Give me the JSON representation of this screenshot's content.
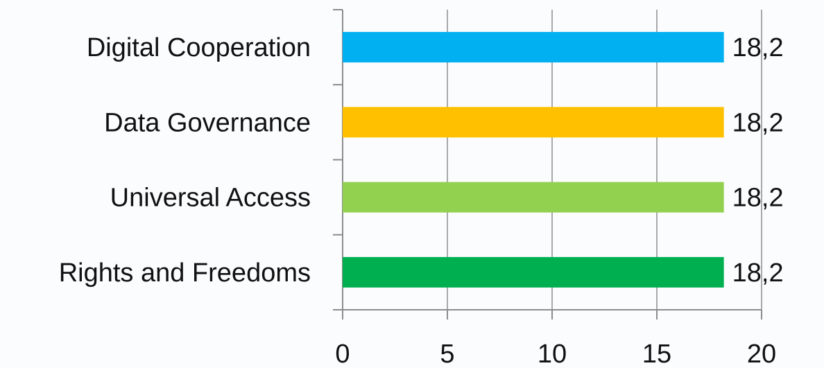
{
  "chart_data": {
    "type": "bar",
    "orientation": "horizontal",
    "categories": [
      "Digital Cooperation",
      "Data Governance",
      "Universal Access",
      "Rights and Freedoms"
    ],
    "values": [
      18.2,
      18.2,
      18.2,
      18.2
    ],
    "value_labels": [
      "18,2",
      "18,2",
      "18,2",
      "18,2"
    ],
    "colors": [
      "#00b0f0",
      "#ffc000",
      "#92d050",
      "#00b050"
    ],
    "x_ticks": [
      "0",
      "5",
      "10",
      "15",
      "20"
    ],
    "xlim": [
      0,
      20
    ],
    "grid": true,
    "legend": "none"
  }
}
